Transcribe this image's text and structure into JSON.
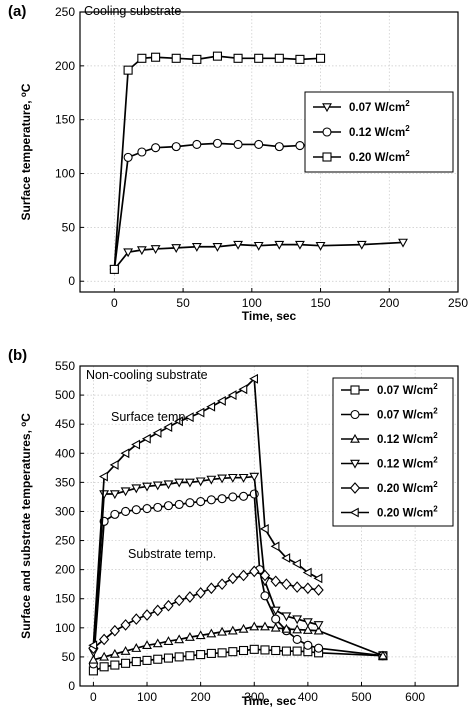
{
  "chart_data": [
    {
      "type": "line",
      "panel_label": "(a)",
      "title": "Cooling substrate",
      "xlabel": "Time, sec",
      "ylabel_main": "Surface temperature, ",
      "ylabel_sup": "o",
      "ylabel_unit": "C",
      "xlim": [
        -25,
        250
      ],
      "ylim": [
        -10,
        250
      ],
      "xticks": [
        0,
        50,
        100,
        150,
        200,
        250
      ],
      "yticks": [
        0,
        50,
        100,
        150,
        200,
        250
      ],
      "grid": true,
      "legend_position": "right",
      "series": [
        {
          "name": "0.07 W/cm",
          "sup": "2",
          "marker": "triangle-down",
          "x": [
            0,
            10,
            20,
            30,
            45,
            60,
            75,
            90,
            105,
            120,
            135,
            150,
            180,
            210
          ],
          "y": [
            11,
            27,
            29,
            30,
            31,
            32,
            32,
            34,
            33,
            34,
            34,
            33,
            34,
            36
          ]
        },
        {
          "name": "0.12 W/cm",
          "sup": "2",
          "marker": "circle",
          "x": [
            0,
            10,
            20,
            30,
            45,
            60,
            75,
            90,
            105,
            120,
            135,
            150
          ],
          "y": [
            11,
            115,
            120,
            124,
            125,
            127,
            128,
            127,
            127,
            125,
            126,
            127
          ]
        },
        {
          "name": "0.20 W/cm",
          "sup": "2",
          "marker": "square",
          "x": [
            0,
            10,
            20,
            30,
            45,
            60,
            75,
            90,
            105,
            120,
            135,
            150
          ],
          "y": [
            11,
            196,
            207,
            208,
            207,
            206,
            209,
            207,
            207,
            207,
            206,
            207
          ]
        }
      ]
    },
    {
      "type": "line",
      "panel_label": "(b)",
      "title": "Non-cooling substrate",
      "xlabel": "Time, sec",
      "ylabel_main": "Surface  and  substrate  temperatures, ",
      "ylabel_sup": "o",
      "ylabel_unit": "C",
      "annotations": [
        "Surface temp.",
        "Substrate temp."
      ],
      "xlim": [
        -25,
        680
      ],
      "ylim": [
        0,
        550
      ],
      "xticks": [
        0,
        100,
        200,
        300,
        400,
        500,
        600
      ],
      "yticks": [
        0,
        50,
        100,
        150,
        200,
        250,
        300,
        350,
        400,
        450,
        500,
        550
      ],
      "grid": true,
      "legend_position": "right",
      "series": [
        {
          "name": "0.07 W/cm",
          "sup": "2",
          "marker": "square",
          "x": [
            0,
            20,
            40,
            60,
            80,
            100,
            120,
            140,
            160,
            180,
            200,
            220,
            240,
            260,
            280,
            300,
            320,
            340,
            360,
            380,
            400,
            420,
            540
          ],
          "y": [
            26,
            33,
            36,
            39,
            42,
            44,
            46,
            48,
            50,
            52,
            54,
            56,
            57,
            59,
            61,
            63,
            62,
            61,
            60,
            60,
            59,
            57,
            52
          ]
        },
        {
          "name": "0.07 W/cm",
          "sup": "2",
          "marker": "circle",
          "x": [
            0,
            20,
            40,
            60,
            80,
            100,
            120,
            140,
            160,
            180,
            200,
            220,
            240,
            260,
            280,
            300,
            310,
            320,
            340,
            360,
            380,
            400,
            420,
            540
          ],
          "y": [
            38,
            283,
            295,
            300,
            303,
            305,
            307,
            310,
            312,
            315,
            317,
            320,
            322,
            325,
            326,
            330,
            200,
            155,
            115,
            95,
            80,
            70,
            65,
            52
          ]
        },
        {
          "name": "0.12 W/cm",
          "sup": "2",
          "marker": "triangle-up",
          "x": [
            0,
            20,
            40,
            60,
            80,
            100,
            120,
            140,
            160,
            180,
            200,
            220,
            240,
            260,
            280,
            300,
            320,
            340,
            360,
            380,
            400,
            420,
            540
          ],
          "y": [
            45,
            50,
            55,
            60,
            65,
            70,
            73,
            77,
            80,
            84,
            87,
            90,
            93,
            95,
            98,
            102,
            102,
            100,
            98,
            97,
            96,
            95,
            52
          ]
        },
        {
          "name": "0.12 W/cm",
          "sup": "2",
          "marker": "triangle-down",
          "x": [
            0,
            20,
            40,
            60,
            80,
            100,
            120,
            140,
            160,
            180,
            200,
            220,
            240,
            260,
            280,
            300,
            320,
            340,
            360,
            380,
            400,
            420
          ],
          "y": [
            58,
            330,
            330,
            335,
            340,
            343,
            345,
            347,
            350,
            350,
            352,
            355,
            357,
            358,
            358,
            360,
            180,
            130,
            120,
            115,
            110,
            105
          ]
        },
        {
          "name": "0.20 W/cm",
          "sup": "2",
          "marker": "diamond",
          "x": [
            0,
            20,
            40,
            60,
            80,
            100,
            120,
            140,
            160,
            180,
            200,
            220,
            240,
            260,
            280,
            300,
            320,
            340,
            360,
            380,
            400,
            420
          ],
          "y": [
            65,
            80,
            95,
            105,
            115,
            122,
            130,
            138,
            147,
            153,
            160,
            168,
            175,
            185,
            190,
            197,
            190,
            180,
            175,
            170,
            168,
            165
          ]
        },
        {
          "name": "0.20 W/cm",
          "sup": "2",
          "marker": "triangle-left",
          "x": [
            0,
            20,
            40,
            60,
            80,
            100,
            120,
            140,
            160,
            180,
            200,
            220,
            240,
            260,
            280,
            300,
            320,
            340,
            360,
            380,
            400,
            420
          ],
          "y": [
            70,
            360,
            380,
            400,
            415,
            425,
            435,
            445,
            455,
            462,
            470,
            480,
            490,
            500,
            510,
            528,
            270,
            240,
            220,
            210,
            195,
            185
          ]
        }
      ]
    }
  ]
}
